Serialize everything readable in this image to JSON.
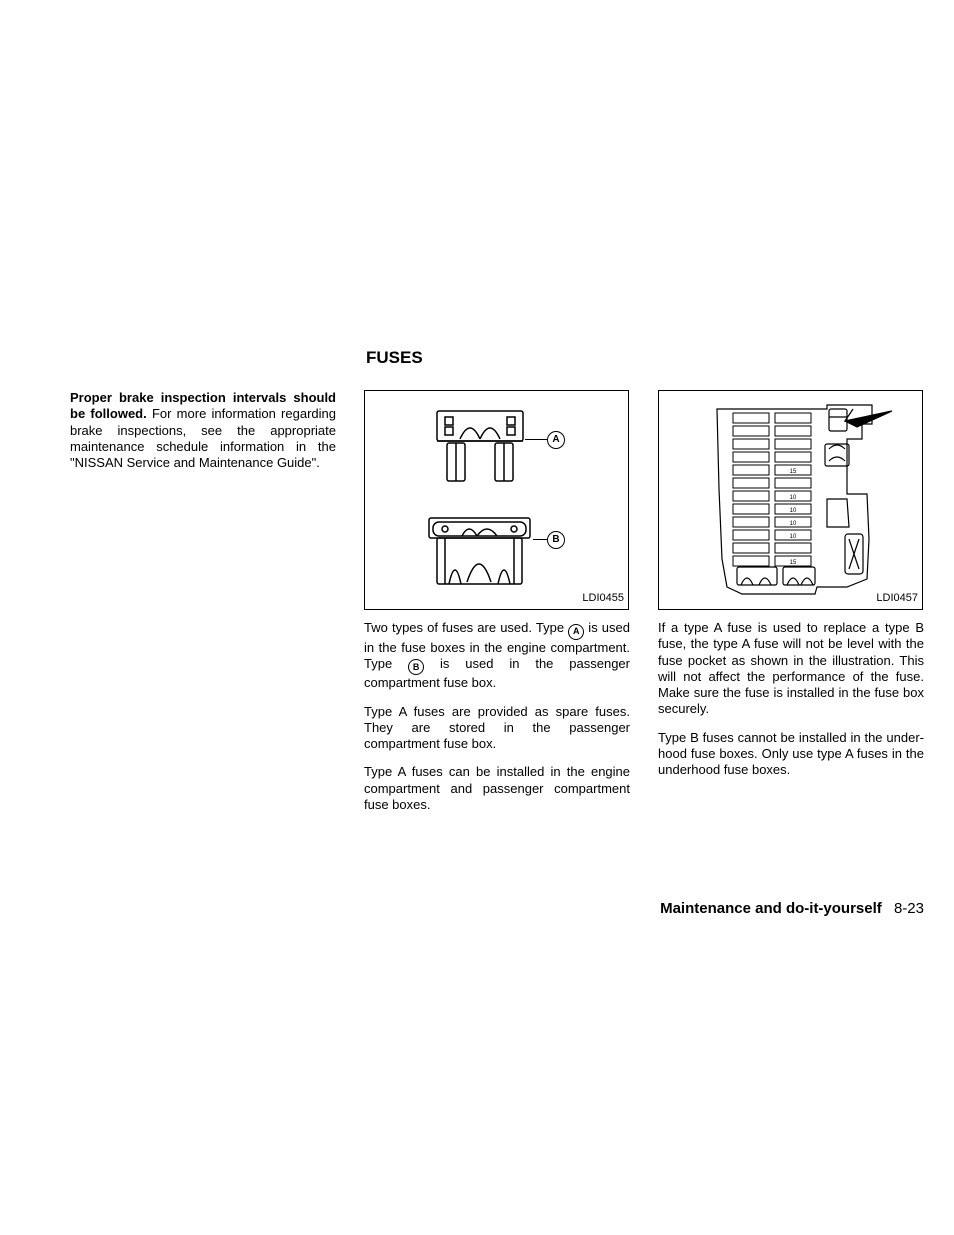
{
  "heading": "FUSES",
  "col1": {
    "para1_bold": "Proper brake inspection intervals should be followed.",
    "para1_rest": " For more information regarding brake inspections, see the appropriate maintenance schedule information in the \"NISSAN Service and Maintenance Guide\"."
  },
  "fig1": {
    "label": "LDI0455",
    "callout_a": "A",
    "callout_b": "B",
    "stroke": "#000000",
    "fill": "#ffffff"
  },
  "fig2": {
    "label": "LDI0457",
    "fuse_values": [
      "",
      "",
      "",
      "",
      "15",
      "",
      "10",
      "10",
      "10",
      "10",
      "",
      "15"
    ],
    "stroke": "#000000",
    "fill": "#ffffff"
  },
  "col2": {
    "p1_a": "Two types of fuses are used. Type ",
    "p1_b": " is used in the fuse boxes in the engine compartment. Type ",
    "p1_c": " is used in the passenger compartment fuse box.",
    "p2": "Type A fuses are provided as spare fuses. They are stored in the passenger compartment fuse box.",
    "p3": "Type A fuses can be installed in the engine compartment and passenger compartment fuse boxes.",
    "circ_a": "A",
    "circ_b": "B"
  },
  "col3": {
    "p1": "If a type A fuse is used to replace a type B fuse, the type A fuse will not be level with the fuse pocket as shown in the illustration. This will not affect the performance of the fuse. Make sure the fuse is installed in the fuse box securely.",
    "p2": "Type B fuses cannot be installed in the under-hood fuse boxes. Only use type A fuses in the underhood fuse boxes."
  },
  "footer": {
    "section": "Maintenance and do-it-yourself",
    "page": "8-23"
  },
  "style": {
    "text_color": "#000000",
    "bg_color": "#ffffff",
    "body_fontsize": 13,
    "heading_fontsize": 17
  }
}
